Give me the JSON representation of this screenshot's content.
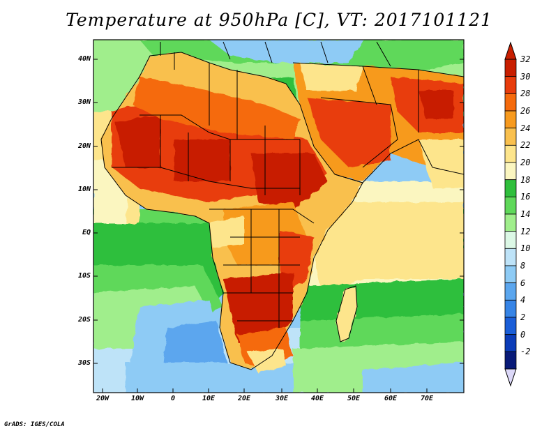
{
  "title": "Temperature at 950hPa [C], VT: 2017101121",
  "credit": "GrADS: IGES/COLA",
  "y_ticks": [
    "40N",
    "30N",
    "20N",
    "10N",
    "EQ",
    "10S",
    "20S",
    "30S"
  ],
  "x_ticks": [
    "20W",
    "10W",
    "0",
    "10E",
    "20E",
    "30E",
    "40E",
    "50E",
    "60E",
    "70E"
  ],
  "colorbar": {
    "labels": [
      "32",
      "30",
      "28",
      "26",
      "24",
      "22",
      "20",
      "18",
      "16",
      "14",
      "12",
      "10",
      "8",
      "6",
      "4",
      "2",
      "0",
      "-2"
    ],
    "colors": [
      "#c81e00",
      "#e83c0c",
      "#f56a0c",
      "#f79a1e",
      "#f9c04e",
      "#fde58c",
      "#fbf6c0",
      "#2fbf3c",
      "#5fd85a",
      "#a0ee8c",
      "#dcf8e6",
      "#bee3f8",
      "#8ecbf5",
      "#5ba6ee",
      "#3684e6",
      "#1a5ed8",
      "#0b3cb8",
      "#081a78"
    ]
  },
  "map": {
    "projection": "lat-lon",
    "lon_range": [
      -25,
      80
    ],
    "lat_range": [
      -37,
      46
    ],
    "ocean_color": "#8ecbf5",
    "features": [
      "Saharan heat band 28-32C",
      "Arabian Peninsula and Iran 26-30C",
      "Southern Africa 26-32C",
      "Mediterranean and Atlantic 14-18C"
    ]
  }
}
